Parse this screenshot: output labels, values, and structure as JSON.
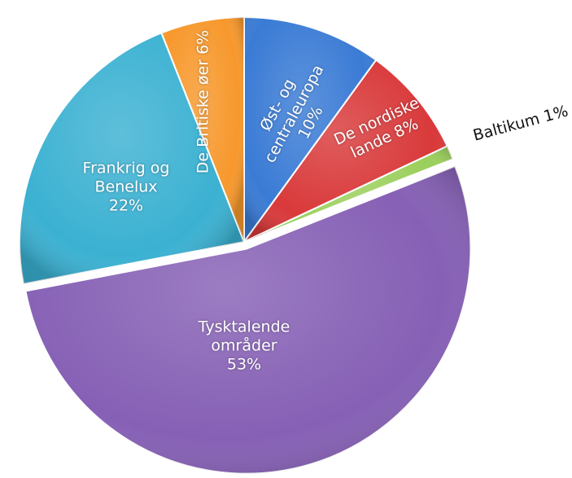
{
  "chart_data": {
    "type": "pie",
    "categories": [
      "Øst- og centraleuropa",
      "De nordiske lande",
      "Baltikum",
      "Tysktalende områder",
      "Frankrig og Benelux",
      "De Britiske øer"
    ],
    "values": [
      10,
      8,
      1,
      53,
      22,
      6
    ],
    "value_labels": [
      "10%",
      "8%",
      "1%",
      "53%",
      "22%",
      "6%"
    ],
    "colors": [
      "#3a7bd5",
      "#d9393a",
      "#9bcf5b",
      "#8660b5",
      "#3bb1d2",
      "#f7982c"
    ]
  }
}
